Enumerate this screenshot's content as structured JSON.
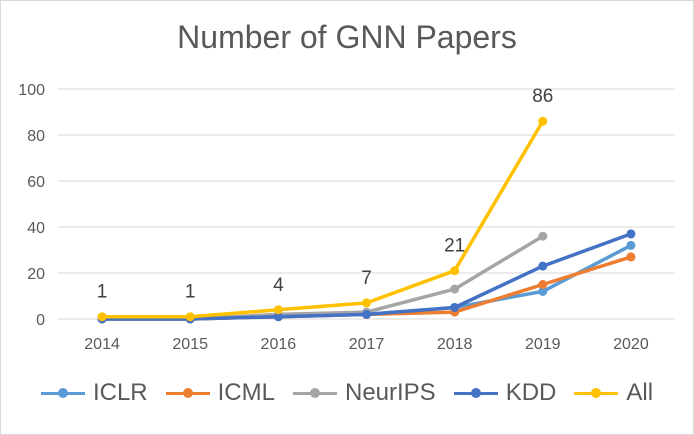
{
  "chart_data": {
    "type": "line",
    "title": "Number of GNN Papers",
    "categories": [
      "2014",
      "2015",
      "2016",
      "2017",
      "2018",
      "2019",
      "2020"
    ],
    "ylim": [
      0,
      100
    ],
    "yticks": [
      "0",
      "20",
      "40",
      "60",
      "80",
      "100"
    ],
    "grid": true,
    "legend": "bottom",
    "series": [
      {
        "name": "ICLR",
        "color": "#5B9BD5",
        "values": [
          0,
          0,
          1,
          2,
          5,
          12,
          32
        ]
      },
      {
        "name": "ICML",
        "color": "#ED7D31",
        "values": [
          0,
          0,
          1,
          2,
          3,
          15,
          27
        ]
      },
      {
        "name": "NeurIPS",
        "color": "#A5A5A5",
        "values": [
          0,
          0,
          2,
          3,
          13,
          36,
          null
        ]
      },
      {
        "name": "KDD",
        "color": "#4472C4",
        "values": [
          0,
          0,
          1,
          2,
          5,
          23,
          37
        ]
      },
      {
        "name": "All",
        "color": "#FFC000",
        "values": [
          1,
          1,
          4,
          7,
          21,
          86,
          null
        ]
      }
    ],
    "data_labels": [
      "1",
      "1",
      "4",
      "7",
      "21",
      "86"
    ]
  }
}
